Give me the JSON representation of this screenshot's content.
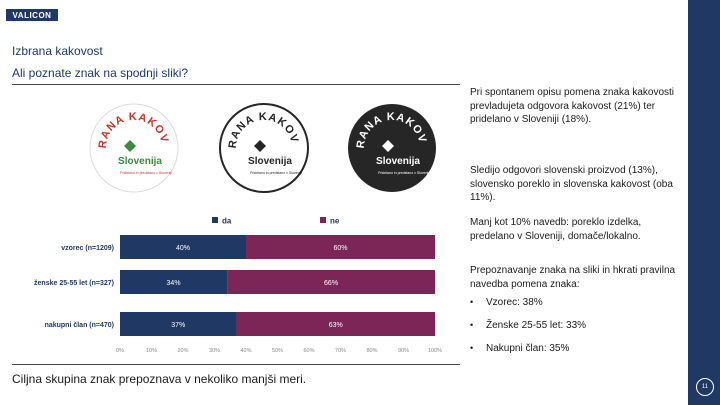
{
  "brand": {
    "logo_text": "VALICON"
  },
  "slide": {
    "title": "Izbrana kakovost",
    "question": "Ali poznate znak na spodnji sliki?",
    "footer": "Ciljna skupina znak prepoznava v nekoliko manjši meri.",
    "page_number": "11"
  },
  "emblems": {
    "top_text": "IZBRANA KAKOVOST",
    "center_text": "Slovenija",
    "small_text": "Pridelano in predelano v Sloveniji",
    "variants": [
      "color",
      "outline",
      "dark"
    ]
  },
  "chart_data": {
    "type": "bar",
    "orientation": "horizontal",
    "stacked": true,
    "categories": [
      "vzorec (n=1209)",
      "ženske 25-55 let (n=327)",
      "nakupni član (n=470)"
    ],
    "series": [
      {
        "name": "da",
        "values": [
          40,
          34,
          37
        ],
        "labels": [
          "40%",
          "34%",
          "37%"
        ],
        "color": "#1f3864"
      },
      {
        "name": "ne",
        "values": [
          60,
          66,
          63
        ],
        "labels": [
          "60%",
          "66%",
          "63%"
        ],
        "color": "#7b2656"
      }
    ],
    "xlim": [
      0,
      100
    ],
    "x_ticks": [
      "0%",
      "10%",
      "20%",
      "30%",
      "40%",
      "50%",
      "60%",
      "70%",
      "80%",
      "90%",
      "100%"
    ],
    "legend_position": "top"
  },
  "text_column": {
    "p1": "Pri spontanem opisu pomena znaka kakovosti prevladujeta odgovora kakovost (21%) ter pridelano v Sloveniji (18%).",
    "p2": "Sledijo odgovori slovenski proizvod (13%), slovensko poreklo in slovenska kakovost (oba 11%).",
    "p3": "Manj kot 10% navedb: poreklo izdelka, predelano v Sloveniji, domače/lokalno.",
    "p4": "Prepoznavanje znaka na sliki in hkrati pravilna navedba pomena znaka:",
    "bullets": [
      "Vzorec: 38%",
      "Ženske 25-55 let: 33%",
      "Nakupni član: 35%"
    ],
    "bullet_glyph": "•"
  },
  "colors": {
    "navy": "#1f3864",
    "plum": "#7b2656",
    "green": "#3b8a3e",
    "red": "#c0392b",
    "dark": "#262626"
  }
}
